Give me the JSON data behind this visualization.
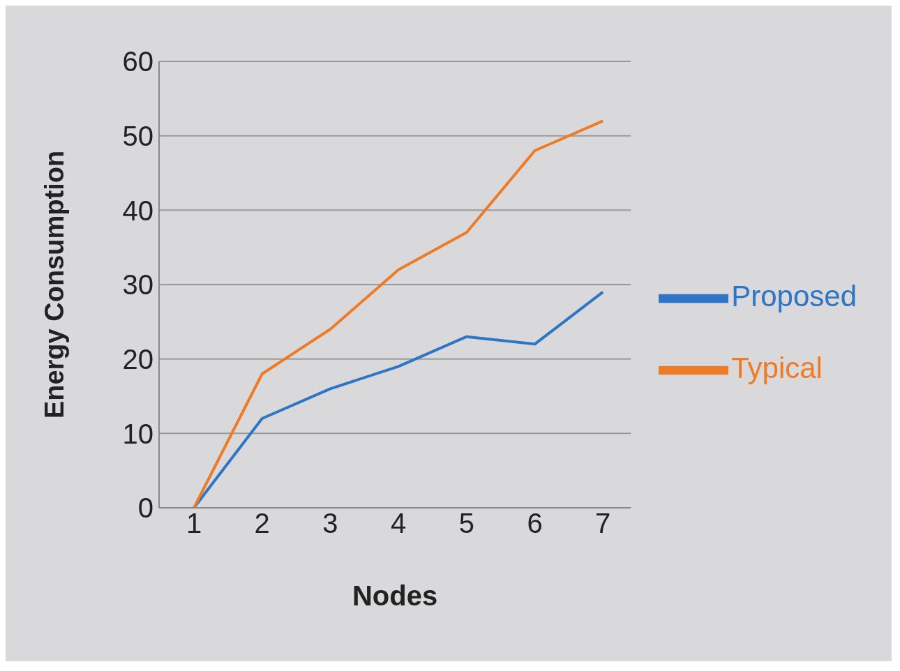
{
  "chart_data": {
    "type": "line",
    "xlabel": "Nodes",
    "ylabel": "Energy Consumption",
    "categories": [
      "1",
      "2",
      "3",
      "4",
      "5",
      "6",
      "7"
    ],
    "series": [
      {
        "name": "Proposed",
        "color": "#2e75c6",
        "values": [
          0,
          12,
          16,
          19,
          23,
          22,
          29
        ]
      },
      {
        "name": "Typical",
        "color": "#ee7b26",
        "values": [
          0,
          18,
          24,
          32,
          37,
          48,
          52
        ]
      }
    ],
    "ylim": [
      0,
      60
    ],
    "yticks": [
      0,
      10,
      20,
      30,
      40,
      50,
      60
    ],
    "grid": "y",
    "legend": "right",
    "marker": "none",
    "line_style": "solid"
  }
}
